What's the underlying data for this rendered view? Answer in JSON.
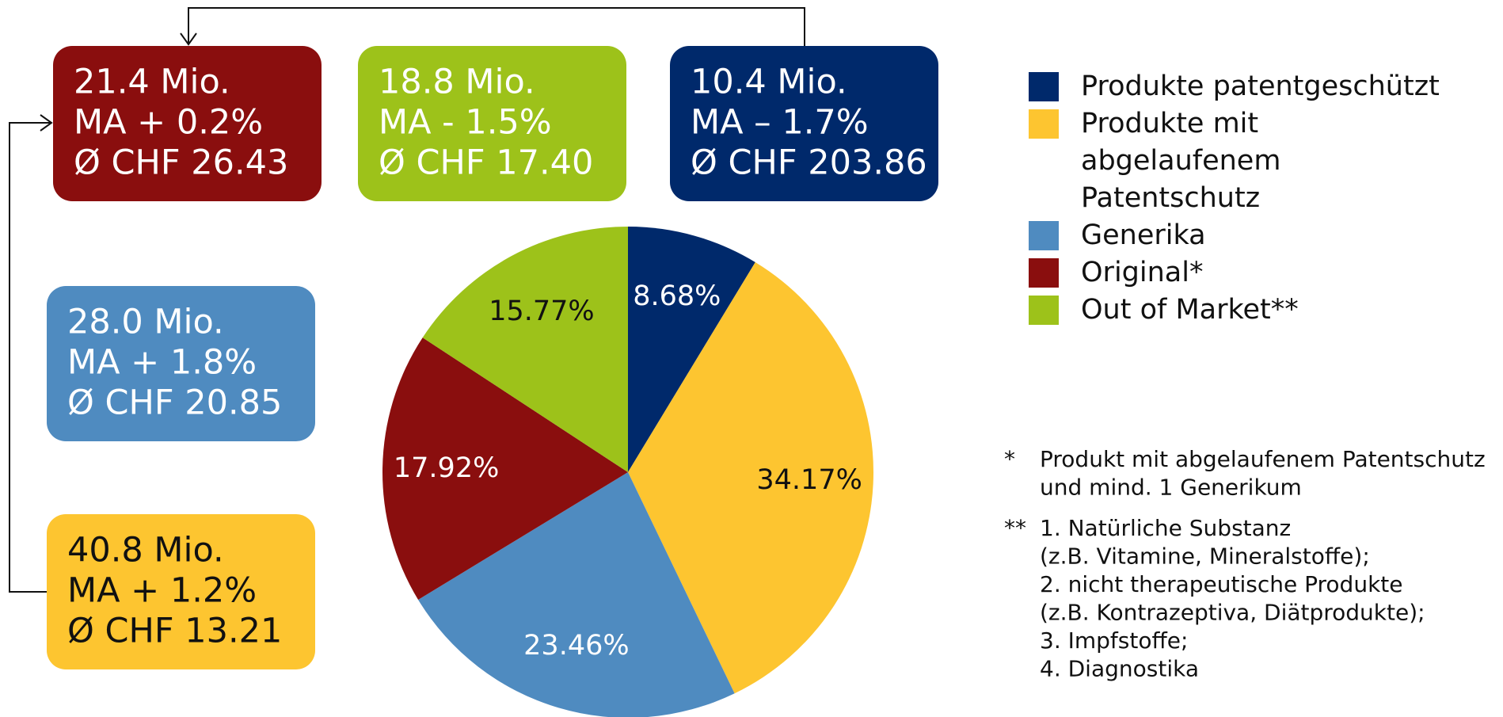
{
  "chart_data": {
    "type": "pie",
    "categories": [
      "Produkte patentgeschützt",
      "Produkte mit abgelaufenem Patentschutz",
      "Generika",
      "Original*",
      "Out of Market**"
    ],
    "values": [
      8.68,
      34.17,
      23.46,
      17.92,
      15.77
    ],
    "value_labels": [
      "8.68%",
      "34.17%",
      "23.46%",
      "17.92%",
      "15.77%"
    ],
    "colors": [
      "#00296b",
      "#fdc530",
      "#4f8bc0",
      "#8a0e0e",
      "#9dc21a"
    ]
  },
  "boxes": [
    {
      "color": "#8a0e0e",
      "lines": [
        "21.4 Mio.",
        "MA + 0.2%",
        "Ø CHF 26.43"
      ]
    },
    {
      "color": "#9dc21a",
      "lines": [
        "18.8 Mio.",
        "MA  - 1.5%",
        "Ø CHF 17.40"
      ]
    },
    {
      "color": "#00296b",
      "lines": [
        "10.4 Mio.",
        "MA – 1.7%",
        "Ø CHF 203.86"
      ]
    },
    {
      "color": "#4f8bc0",
      "lines": [
        "28.0 Mio.",
        "MA + 1.8%",
        "Ø CHF 20.85"
      ]
    },
    {
      "color": "#fdc530",
      "lines": [
        "40.8 Mio.",
        "MA + 1.2%",
        "Ø CHF 13.21"
      ]
    }
  ],
  "footnotes": [
    {
      "mark": "*",
      "lines": [
        "Produkt mit abgelaufenem Patentschutz",
        "und mind. 1 Generikum"
      ]
    },
    {
      "mark": "**",
      "lines": [
        "1. Natürliche Substanz",
        "(z.B. Vitamine, Mineralstoffe);",
        "2. nicht therapeutische Produkte",
        "(z.B. Kontrazeptiva, Diätprodukte);",
        "3. Impfstoffe;",
        "4. Diagnostika"
      ]
    }
  ]
}
